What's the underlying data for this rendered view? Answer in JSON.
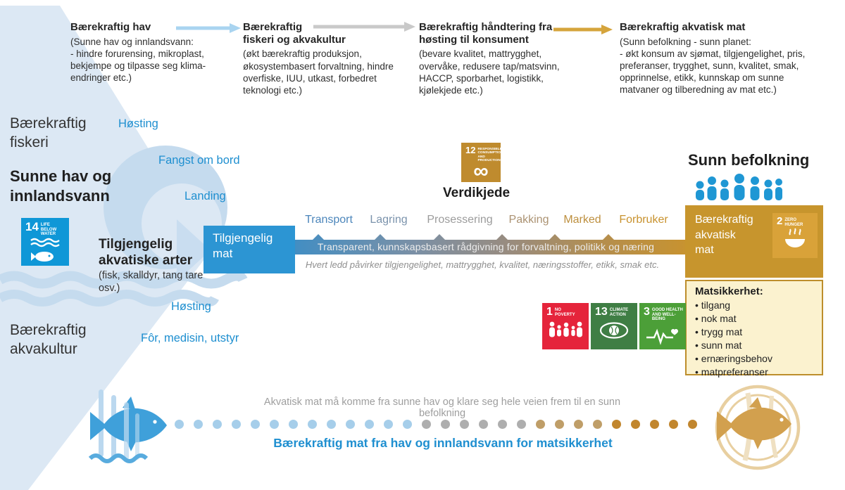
{
  "top_flow": {
    "steps": [
      {
        "title": "Bærekraftig hav",
        "details": "(Sunne hav og innlandsvann:\n- hindre forurensing, mikroplast,\nbekjempe og tilpasse seg klima-\nendringer etc.)"
      },
      {
        "title": "Bærekraftig\nfiskeri og akvakultur",
        "details": "(økt bærekraftig produksjon,\nøkosystembasert forvaltning, hindre\noverfiske, IUU, utkast, forbedret\nteknologi etc.)"
      },
      {
        "title": "Bærekraftig håndtering fra\nhøsting til konsument",
        "details": "(bevare kvalitet, mattrygghet,\novervåke, redusere tap/matsvinn,\nHACCP, sporbarhet, logistikk,\nkjølekjede etc.)"
      },
      {
        "title": "Bærekraftig akvatisk mat",
        "details": "(Sunn befolkning - sunn planet:\n- økt konsum av sjømat, tilgjengelighet, pris,\npreferanser, trygghet, sunn, kvalitet, smak,\nopprinnelse, etikk, kunnskap om sunne\nmatvaner og tilberedning av mat etc.)"
      }
    ]
  },
  "left": {
    "fiskeri": "Bærekraftig\nfiskeri",
    "sunne_hav": "Sunne hav og\ninnlandsvann",
    "akvakultur": "Bærekraftig\nakvakultur",
    "hosting_top": "Høsting",
    "fangst": "Fangst om bord",
    "landing": "Landing",
    "hosting_bottom": "Høsting",
    "for_medisin": "Fôr, medisin, utstyr",
    "arter_title": "Tilgjengelig\nakvatiske arter",
    "arter_sub": "(fisk, skalldyr, tang tare\nosv.)"
  },
  "chain": {
    "available_food_box": "Tilgjengelig\nmat",
    "stages": [
      {
        "label": "Transport",
        "color": "#4c86bb"
      },
      {
        "label": "Lagring",
        "color": "#7b93ac"
      },
      {
        "label": "Prosessering",
        "color": "#9c9c9c"
      },
      {
        "label": "Pakking",
        "color": "#ab9272"
      },
      {
        "label": "Marked",
        "color": "#bd8f3e"
      },
      {
        "label": "Forbruker",
        "color": "#c8922e"
      }
    ],
    "band_text": "Transparent,  kunnskapsbasert  rådgivning for forvaltning,  politikk og næring",
    "band_note": "Hvert ledd påvirker tilgjengelighet, mattrygghet, kvalitet, næringsstoffer, etikk, smak etc.",
    "verdikjede": "Verdikjede"
  },
  "sdg": {
    "sdg14": {
      "number": "14",
      "label": "LIFE\nBELOW WATER",
      "color": "#0f97d7"
    },
    "sdg12": {
      "number": "12",
      "label": "RESPONSIBLE\nCONSUMPTION\nAND PRODUCTION",
      "color": "#bf8b2e"
    },
    "sdg2": {
      "number": "2",
      "label": "ZERO\nHUNGER",
      "color": "#d9a239"
    },
    "sdg1": {
      "number": "1",
      "label": "NO\nPOVERTY",
      "color": "#e5243b"
    },
    "sdg13": {
      "number": "13",
      "label": "CLIMATE\nACTION",
      "color": "#3f7e44"
    },
    "sdg3": {
      "number": "3",
      "label": "GOOD HEALTH\nAND WELL-BEING",
      "color": "#4c9f38"
    }
  },
  "right": {
    "sunn_befolkning": "Sunn befolkning",
    "gold_box": "Bærekraftig\nakvatisk\nmat",
    "matsikkerhet": {
      "title": "Matsikkerhet:",
      "items": [
        "tilgang",
        "nok mat",
        "trygg mat",
        "sunn mat",
        "ernæringsbehov",
        "matpreferanser"
      ]
    }
  },
  "bottom": {
    "journey_text": "Akvatisk mat må komme fra sunne hav og klare seg hele veien frem til en sunn befolkning",
    "slogan": "Bærekraftig mat fra hav og innlandsvann for matsikkerhet",
    "dot_segments": [
      {
        "color": "#a6ceea",
        "count": 13
      },
      {
        "color": "#aeaeae",
        "count": 6
      },
      {
        "color": "#bf9e68",
        "count": 4
      },
      {
        "color": "#c1862e",
        "count": 5
      }
    ]
  },
  "colors": {
    "arrow_blue": "#a9d4f0",
    "arrow_gray": "#c9c9c9",
    "arrow_gold": "#d5a43c",
    "wedge_blue": "#dce8f4",
    "wave_accent": "#c5dbee",
    "label_blue": "#1e8fd0",
    "box_blue": "#2c95d3",
    "gold": "#c7952d",
    "band_gradient": [
      "#3e8ec5",
      "#7b90a6",
      "#988c80",
      "#b48e4e",
      "#c8932f"
    ]
  }
}
